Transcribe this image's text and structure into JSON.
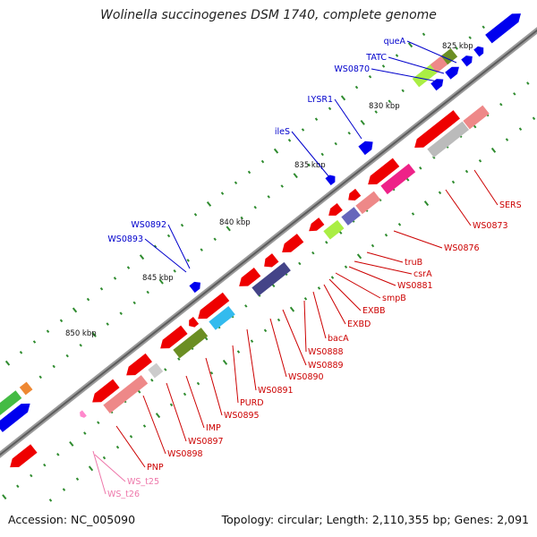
{
  "title": "Wolinella succinogenes DSM 1740, complete genome",
  "footer": {
    "accession": "Accession: NC_005090",
    "summary": "Topology: circular; Length: 2,110,355 bp; Genes: 2,091"
  },
  "scale_labels": [
    "825 kbp",
    "830 kbp",
    "835 kbp",
    "840 kbp",
    "845 kbp",
    "850 kbp"
  ],
  "forward_labels": [
    "queA",
    "TATC",
    "WS0870",
    "LYSR1",
    "ileS",
    "WS0892",
    "WS0893"
  ],
  "reverse_labels": [
    "SERS",
    "WS0873",
    "WS0876",
    "truB",
    "csrA",
    "WS0881",
    "smpB",
    "EXBB",
    "EXBD",
    "bacA",
    "WS0888",
    "WS0889",
    "WS0890",
    "WS0891",
    "PURD",
    "WS0895",
    "IMP",
    "WS0897",
    "WS0898",
    "PNP"
  ],
  "rna_labels": [
    "WS_t25",
    "WS_t26"
  ],
  "colors": {
    "forward_gene": "#0000ee",
    "reverse_gene": "#ee0000",
    "rna_gene": "#ff88cc",
    "backbone": "#888888",
    "tick": "#2e8b2e",
    "forward_label": "#0000cc",
    "reverse_label": "#cc0000",
    "rna_label": "#ee77aa"
  }
}
